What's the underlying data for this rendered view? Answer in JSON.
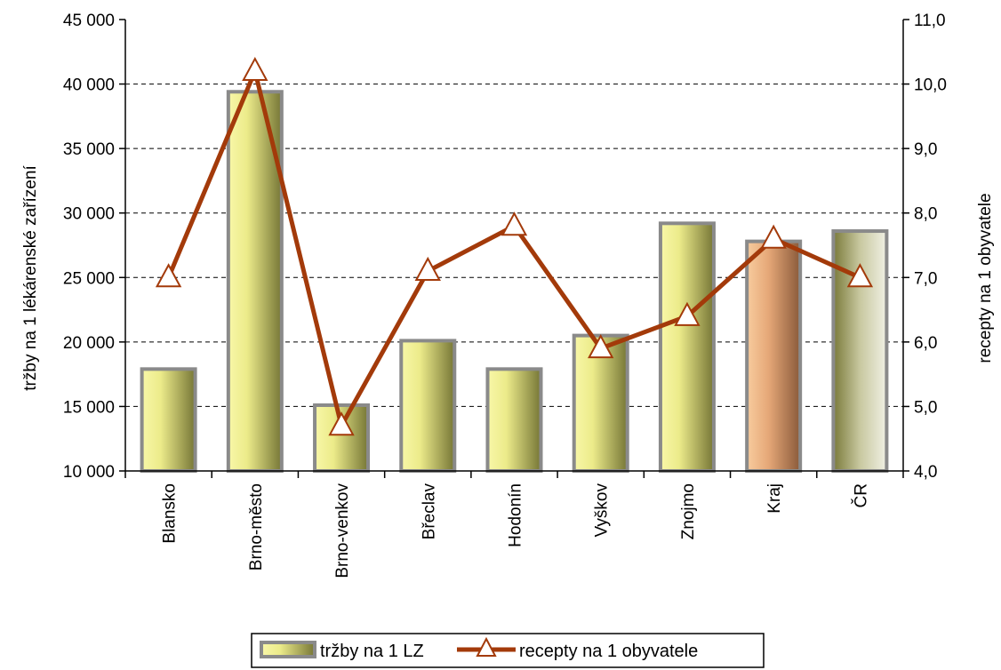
{
  "chart_data": {
    "type": "bar",
    "categories": [
      "Blansko",
      "Brno-město",
      "Brno-venkov",
      "Břeclav",
      "Hodonín",
      "Vyškov",
      "Znojmo",
      "Kraj",
      "ČR"
    ],
    "series": [
      {
        "name": "tržby na 1 LZ",
        "type": "bar",
        "axis": "left",
        "values": [
          17900,
          39400,
          15100,
          20100,
          17900,
          20500,
          29200,
          27800,
          28600
        ]
      },
      {
        "name": "recepty na 1 obyvatele",
        "type": "line",
        "axis": "right",
        "marker": "triangle",
        "values": [
          7.0,
          10.2,
          4.7,
          7.1,
          7.8,
          5.9,
          6.4,
          7.6,
          7.0
        ]
      }
    ],
    "ylabel": "tržby na 1 lékárenské zařízení",
    "ylabel_right": "recepty na 1 obyvatele",
    "ylim": [
      10000,
      45000
    ],
    "ylim_right": [
      4.0,
      11.0
    ],
    "yticks": [
      "10 000",
      "15 000",
      "20 000",
      "25 000",
      "30 000",
      "35 000",
      "40 000",
      "45 000"
    ],
    "yticks_right": [
      "4,0",
      "5,0",
      "6,0",
      "7,0",
      "8,0",
      "9,0",
      "10,0",
      "11,0"
    ],
    "grid": "horizontal dashed",
    "legend_position": "bottom",
    "colors": {
      "bar_fill_light": "#f6f5a2",
      "bar_fill_dark": "#7a7a3c",
      "bar_border": "#8a8a8a",
      "kraj_fill_light": "#f5c89a",
      "kraj_fill_dark": "#8a5a3c",
      "cr_fill_light": "#eeeede",
      "cr_fill_dark": "#7a7a3c",
      "line": "#a33a0a",
      "marker_fill": "#ffffff"
    }
  }
}
